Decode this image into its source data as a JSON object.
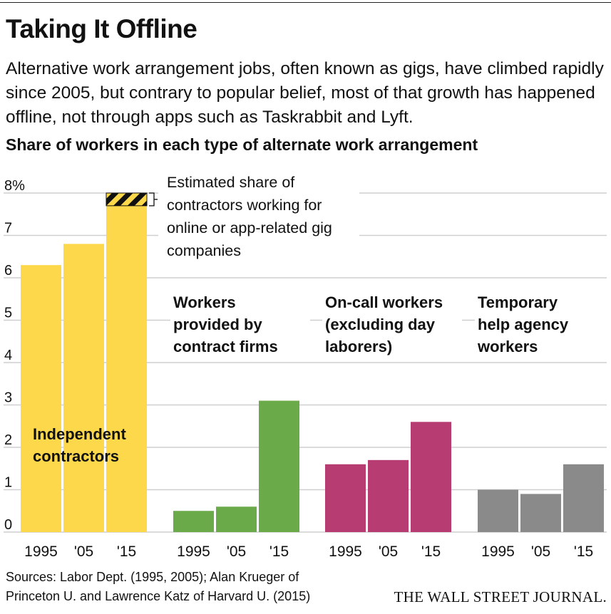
{
  "title": "Taking It Offline",
  "subtitle": "Alternative work arrangement jobs, often known as gigs, have climbed rapidly since 2005, but contrary to popular belief, most of that growth has happened offline, not through apps such as Taskrabbit and Lyft.",
  "chart_heading": "Share of workers in each type of alternate work arrangement",
  "chart_data": {
    "type": "bar",
    "title": "Share of workers in each type of alternate work arrangement",
    "ylim": [
      0,
      8
    ],
    "y_ticks": [
      "0",
      "1",
      "2",
      "3",
      "4",
      "5",
      "6",
      "7",
      "8%"
    ],
    "grid": true,
    "categories": [
      "1995",
      "'05",
      "'15"
    ],
    "groups": [
      {
        "name": "Independent contractors",
        "name_lines": [
          "Independent",
          "contractors"
        ],
        "color": "#fcd84a",
        "values": [
          6.3,
          6.8,
          7.7
        ]
      },
      {
        "name": "Workers provided by contract firms",
        "name_lines": [
          "Workers",
          "provided by",
          "contract firms"
        ],
        "color": "#6aaa48",
        "values": [
          0.5,
          0.6,
          3.1
        ]
      },
      {
        "name": "On-call workers (excluding day laborers)",
        "name_lines": [
          "On-call workers",
          "(excluding day",
          "laborers)"
        ],
        "color": "#b73c72",
        "values": [
          1.6,
          1.7,
          2.6
        ]
      },
      {
        "name": "Temporary help agency workers",
        "name_lines": [
          "Temporary",
          "help agency",
          "workers"
        ],
        "color": "#8a8a8a",
        "values": [
          1.0,
          0.9,
          1.6
        ]
      }
    ],
    "online_gig_share": {
      "group": "Independent contractors",
      "year": "'15",
      "from": 7.7,
      "to": 8.0,
      "pattern_colors": [
        "#111111",
        "#fcd84a"
      ]
    },
    "annotation_lines": [
      "Estimated share of",
      "contractors working for",
      "online or app-related gig",
      "companies"
    ]
  },
  "sources_lines": [
    "Sources: Labor Dept. (1995, 2005); Alan Krueger of",
    "Princeton U. and Lawrence Katz of Harvard U. (2015)"
  ],
  "publisher": "THE WALL STREET JOURNAL."
}
